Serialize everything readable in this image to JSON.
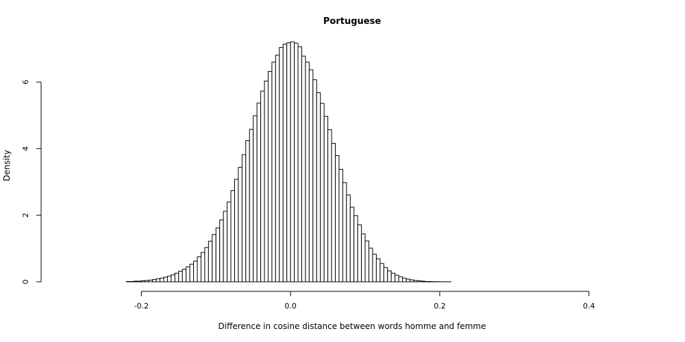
{
  "chart_data": {
    "type": "bar",
    "title": "Portuguese",
    "xlabel": "Difference in cosine distance between words homme and femme",
    "ylabel": "Density",
    "xlim": [
      -0.305,
      0.47
    ],
    "ylim": [
      0,
      7.5
    ],
    "x_ticks": [
      -0.2,
      0.0,
      0.2,
      0.4
    ],
    "x_tick_labels": [
      "-0.2",
      "0.0",
      "0.2",
      "0.4"
    ],
    "y_ticks": [
      0,
      2,
      4,
      6
    ],
    "y_tick_labels": [
      "0",
      "2",
      "4",
      "6"
    ],
    "bin_start": -0.3,
    "bin_width": 0.005,
    "densities": [
      0,
      0,
      0,
      0,
      0,
      0,
      0,
      0,
      0,
      0,
      0,
      0,
      0,
      0,
      0,
      0,
      0.01,
      0.01,
      0.02,
      0.02,
      0.03,
      0.04,
      0.05,
      0.07,
      0.09,
      0.11,
      0.14,
      0.17,
      0.21,
      0.26,
      0.32,
      0.38,
      0.45,
      0.53,
      0.62,
      0.75,
      0.88,
      1.03,
      1.22,
      1.42,
      1.62,
      1.86,
      2.12,
      2.4,
      2.74,
      3.08,
      3.44,
      3.82,
      4.24,
      4.58,
      4.99,
      5.37,
      5.73,
      6.03,
      6.32,
      6.6,
      6.81,
      7.04,
      7.14,
      7.18,
      7.21,
      7.17,
      7.06,
      6.78,
      6.6,
      6.37,
      6.07,
      5.68,
      5.36,
      4.97,
      4.57,
      4.16,
      3.79,
      3.38,
      2.98,
      2.61,
      2.24,
      1.99,
      1.71,
      1.44,
      1.23,
      1.01,
      0.83,
      0.69,
      0.55,
      0.43,
      0.33,
      0.26,
      0.2,
      0.15,
      0.11,
      0.08,
      0.06,
      0.04,
      0.03,
      0.02,
      0.01,
      0.01,
      0.005,
      0.003,
      0.002,
      0.001,
      0.001,
      0,
      0,
      0,
      0,
      0,
      0,
      0,
      0,
      0,
      0,
      0,
      0,
      0,
      0,
      0,
      0,
      0,
      0,
      0,
      0,
      0,
      0,
      0,
      0,
      0,
      0,
      0,
      0,
      0,
      0,
      0,
      0,
      0,
      0,
      0,
      0,
      0,
      0,
      0,
      0,
      0,
      0,
      0,
      0,
      0,
      0,
      0,
      0,
      0,
      0,
      0,
      0
    ],
    "grid": false,
    "legend": "none"
  }
}
